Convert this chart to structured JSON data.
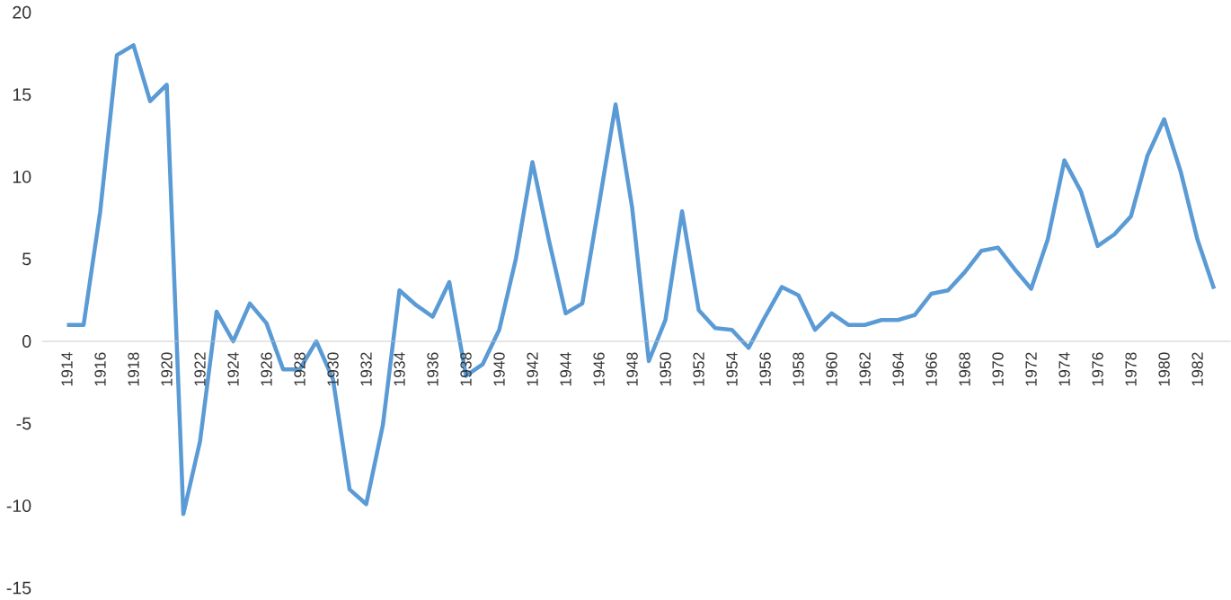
{
  "chart_data": {
    "type": "line",
    "categories": [
      "1914",
      null,
      "1916",
      null,
      "1918",
      null,
      "1920",
      null,
      "1922",
      null,
      "1924",
      null,
      "1926",
      null,
      "1928",
      null,
      "1930",
      null,
      "1932",
      null,
      "1934",
      null,
      "1936",
      null,
      "1938",
      null,
      "1940",
      null,
      "1942",
      null,
      "1944",
      null,
      "1946",
      null,
      "1948",
      null,
      "1950",
      null,
      "1952",
      null,
      "1954",
      null,
      "1956",
      null,
      "1958",
      null,
      "1960",
      null,
      "1962",
      null,
      "1964",
      null,
      "1966",
      null,
      "1968",
      null,
      "1970",
      null,
      "1972",
      null,
      "1974",
      null,
      "1976",
      null,
      "1978",
      null,
      "1980",
      null,
      "1982",
      null
    ],
    "values": [
      1.0,
      1.0,
      7.9,
      17.4,
      18.0,
      14.6,
      15.6,
      -10.5,
      -6.1,
      1.8,
      0.0,
      2.3,
      1.1,
      -1.7,
      -1.7,
      0.0,
      -2.3,
      -9.0,
      -9.9,
      -5.1,
      3.1,
      2.2,
      1.5,
      3.6,
      -2.1,
      -1.4,
      0.7,
      5.0,
      10.9,
      6.1,
      1.7,
      2.3,
      8.3,
      14.4,
      8.1,
      -1.2,
      1.3,
      7.9,
      1.9,
      0.8,
      0.7,
      -0.4,
      1.5,
      3.3,
      2.8,
      0.7,
      1.7,
      1.0,
      1.0,
      1.3,
      1.3,
      1.6,
      2.9,
      3.1,
      4.2,
      5.5,
      5.7,
      4.4,
      3.2,
      6.2,
      11.0,
      9.1,
      5.8,
      6.5,
      7.6,
      11.3,
      13.5,
      10.3,
      6.2,
      3.2
    ],
    "color": "#5b9bd5",
    "ylim": [
      -15,
      20
    ],
    "yticks": [
      -15,
      -10,
      -5,
      0,
      5,
      10,
      15,
      20
    ],
    "marker": "none",
    "line_style": "solid",
    "grid": false
  }
}
